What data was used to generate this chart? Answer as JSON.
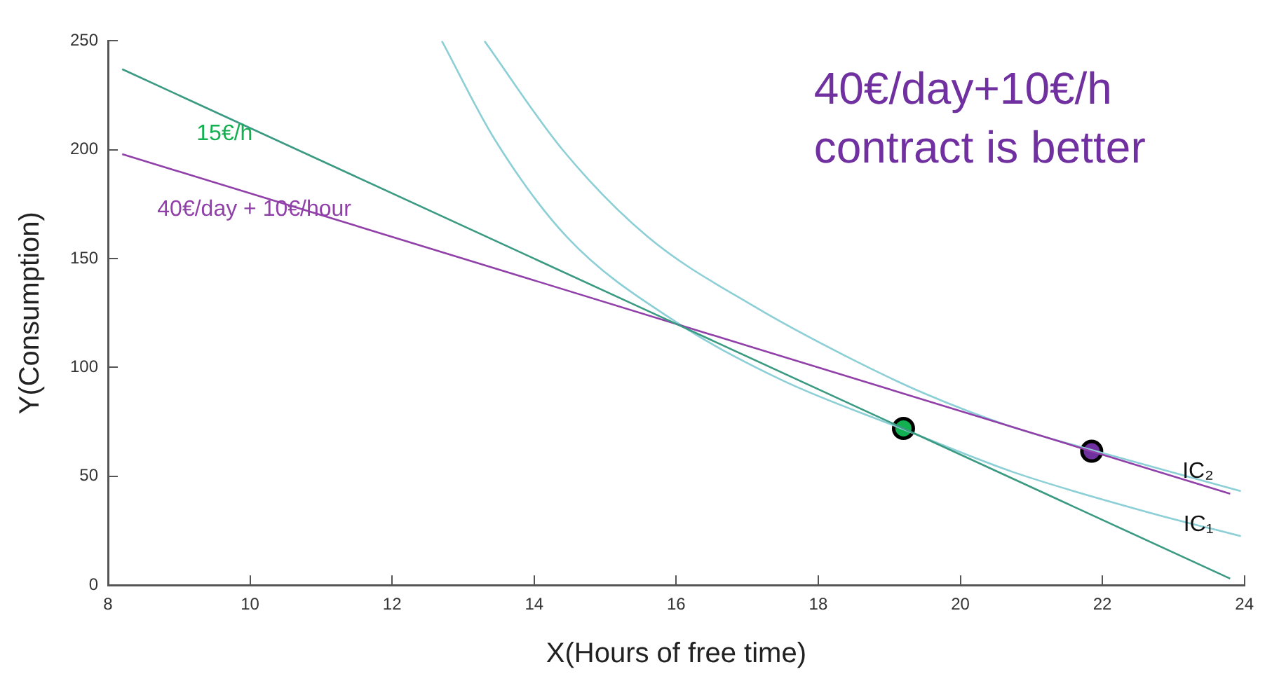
{
  "chart_data": {
    "type": "line",
    "xlabel": "X(Hours of free time)",
    "ylabel": "Y(Consumption)",
    "xlim": [
      8,
      24
    ],
    "xticks": [
      8,
      10,
      12,
      14,
      16,
      18,
      20,
      22,
      24
    ],
    "ylim": [
      0,
      250
    ],
    "yticks": [
      0,
      50,
      100,
      150,
      200,
      250
    ],
    "grid": false,
    "legend": false,
    "marker": "none",
    "line_style": "solid",
    "series": [
      {
        "name": "15€/h",
        "color": "#3a9a82",
        "x": [
          8.2,
          23.8
        ],
        "values": [
          237,
          3
        ]
      },
      {
        "name": "40€/day + 10€/hour",
        "color": "#9040a8",
        "x": [
          8.2,
          23.8
        ],
        "values": [
          198,
          42
        ]
      },
      {
        "name": "IC₁",
        "color": "#8ccfd6",
        "x": [
          12.7,
          13.44,
          14.46,
          16.04,
          17.5,
          19.17,
          20.74,
          22.7,
          23.95
        ],
        "values": [
          250,
          205,
          160,
          120,
          94,
          72,
          52,
          33,
          22.5
        ]
      },
      {
        "name": "IC₂",
        "color": "#8ccfd6",
        "x": [
          13.3,
          14.4,
          15.6,
          17.1,
          18.4,
          19.5,
          20.7,
          21.84,
          23.95
        ],
        "values": [
          250,
          200,
          160,
          128,
          105,
          88,
          73,
          62.2,
          43.2
        ]
      },
      {
        "type": "scatter",
        "color": "#12b050",
        "marker": "circle",
        "x": [
          19.2
        ],
        "values": [
          72
        ]
      },
      {
        "type": "scatter",
        "color": "#7030a0",
        "marker": "circle",
        "x": [
          21.85
        ],
        "values": [
          61.5
        ]
      }
    ],
    "annotations": [
      "40€/day+10€/h contract is better"
    ]
  }
}
